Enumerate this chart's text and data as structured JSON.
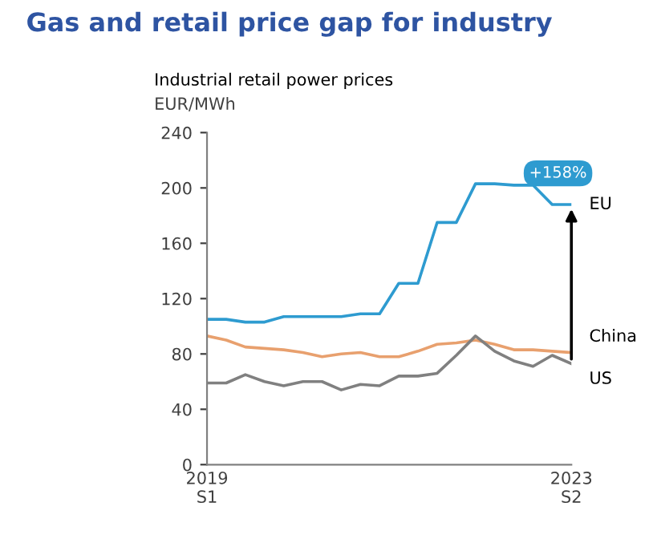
{
  "chart_data": {
    "type": "line",
    "title": "Gas and retail price gap for industry",
    "subtitle": "Industrial retail power prices",
    "ylabel": "EUR/MWh",
    "categories": [
      "2019\nS1",
      null,
      null,
      null,
      null,
      null,
      null,
      null,
      null,
      null,
      null,
      null,
      null,
      null,
      null,
      null,
      null,
      null,
      null,
      "2023\nS2"
    ],
    "series": [
      {
        "name": "EU",
        "color": "#2e9bd0",
        "values": [
          105,
          105,
          103,
          103,
          107,
          107,
          107,
          107,
          109,
          109,
          131,
          131,
          175,
          175,
          203,
          203,
          202,
          202,
          188,
          188
        ]
      },
      {
        "name": "China",
        "color": "#e8a06e",
        "values": [
          93,
          90,
          85,
          84,
          83,
          81,
          78,
          80,
          81,
          78,
          78,
          82,
          87,
          88,
          90,
          87,
          83,
          83,
          82,
          81
        ]
      },
      {
        "name": "US",
        "color": "#808080",
        "values": [
          59,
          59,
          65,
          60,
          57,
          60,
          60,
          54,
          58,
          57,
          64,
          64,
          66,
          79,
          93,
          82,
          75,
          71,
          79,
          73
        ]
      }
    ],
    "annotations": [
      "+158%"
    ],
    "ylim": [
      0,
      240
    ],
    "yticks": [
      0,
      40,
      80,
      120,
      160,
      200,
      240
    ],
    "grid": false,
    "legend": false,
    "marker": "none",
    "line_style": "solid"
  }
}
